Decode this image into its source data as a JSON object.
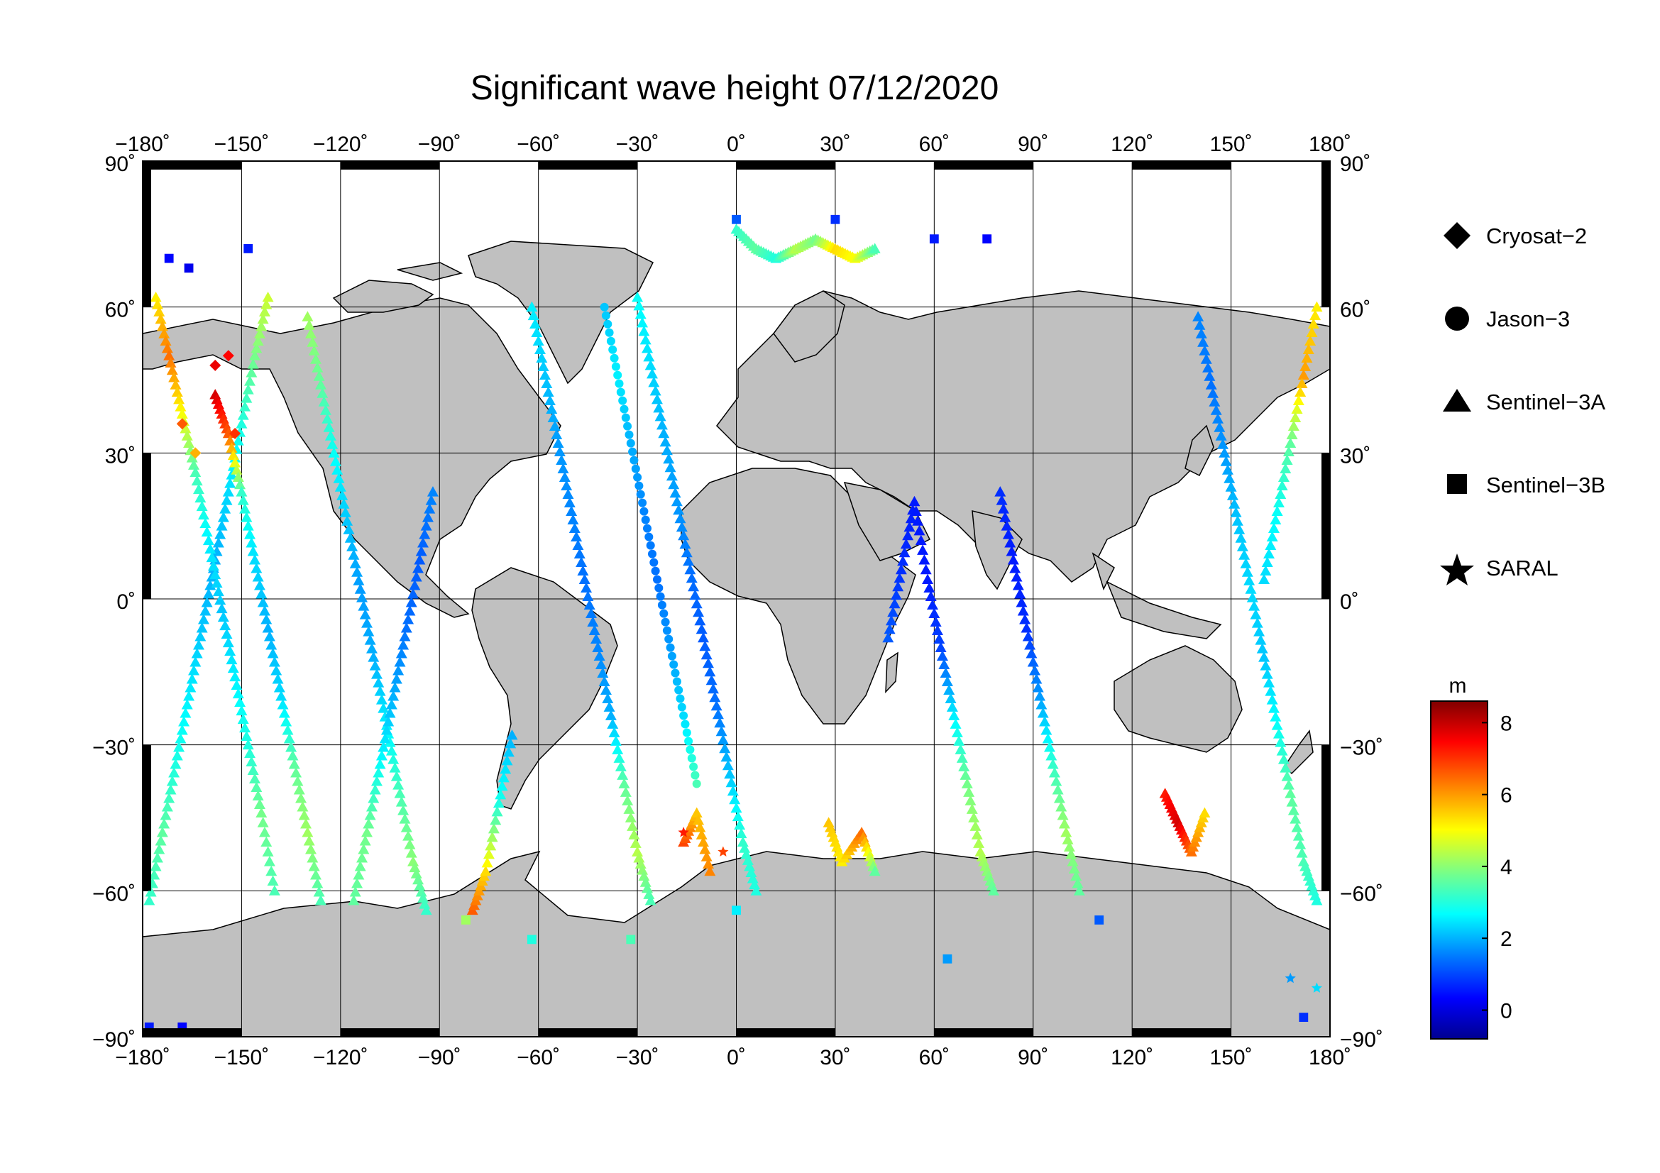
{
  "map": {
    "title": "Significant wave height 07/12/2020",
    "lon_range": [
      -180,
      180
    ],
    "lat_range": [
      -90,
      90
    ],
    "lon_ticks": [
      "−180˚",
      "−150˚",
      "−120˚",
      "−90˚",
      "−60˚",
      "−30˚",
      "0˚",
      "30˚",
      "60˚",
      "90˚",
      "120˚",
      "150˚",
      "180˚"
    ],
    "lat_ticks": [
      "90˚",
      "60˚",
      "30˚",
      "0˚",
      "−30˚",
      "−60˚",
      "−90˚"
    ],
    "grid": true,
    "land_color": "#c0c0c0",
    "ocean_color": "#ffffff"
  },
  "legend": {
    "placement": "right",
    "items": [
      {
        "label": "Cryosat−2",
        "marker": "diamond"
      },
      {
        "label": "Jason−3",
        "marker": "circle"
      },
      {
        "label": "Sentinel−3A",
        "marker": "triangle"
      },
      {
        "label": "Sentinel−3B",
        "marker": "square"
      },
      {
        "label": "SARAL",
        "marker": "star"
      }
    ]
  },
  "colorbar": {
    "unit": "m",
    "range": [
      -0.8,
      8.6
    ],
    "ticks": [
      {
        "value": 8,
        "label": "8"
      },
      {
        "value": 6,
        "label": "6"
      },
      {
        "value": 4,
        "label": "4"
      },
      {
        "value": 2,
        "label": "2"
      },
      {
        "value": 0,
        "label": "0"
      }
    ],
    "colormap": [
      "#00008f",
      "#0000ff",
      "#0080ff",
      "#00ffff",
      "#80ff80",
      "#ffff00",
      "#ff8000",
      "#ff0000",
      "#800000"
    ]
  },
  "chart_data": {
    "type": "scatter",
    "title": "Significant wave height 07/12/2020",
    "x_unit": "longitude (degrees)",
    "y_unit": "latitude (degrees)",
    "value_unit": "m",
    "tracks": [
      {
        "satellite": "Sentinel-3A",
        "points": [
          [
            -178,
            -62,
            3.2
          ],
          [
            -174,
            -48,
            3.6
          ],
          [
            -170,
            -34,
            3.0
          ],
          [
            -166,
            -20,
            2.6
          ],
          [
            -162,
            -6,
            2.2
          ],
          [
            -158,
            8,
            2.0
          ],
          [
            -154,
            22,
            2.4
          ],
          [
            -150,
            36,
            3.0
          ],
          [
            -146,
            50,
            3.8
          ],
          [
            -142,
            62,
            4.6
          ]
        ]
      },
      {
        "satellite": "Sentinel-3A",
        "points": [
          [
            -176,
            62,
            5.2
          ],
          [
            -172,
            50,
            6.4
          ],
          [
            -168,
            38,
            5.0
          ],
          [
            -164,
            26,
            3.4
          ],
          [
            -160,
            12,
            2.6
          ],
          [
            -156,
            -2,
            2.2
          ],
          [
            -152,
            -16,
            2.6
          ],
          [
            -148,
            -30,
            3.0
          ],
          [
            -144,
            -44,
            3.8
          ],
          [
            -140,
            -60,
            3.4
          ]
        ]
      },
      {
        "satellite": "Sentinel-3A",
        "points": [
          [
            -158,
            42,
            7.8
          ],
          [
            -154,
            34,
            6.6
          ],
          [
            -150,
            22,
            3.2
          ],
          [
            -146,
            8,
            2.4
          ],
          [
            -142,
            -6,
            2.0
          ],
          [
            -138,
            -20,
            2.4
          ],
          [
            -134,
            -34,
            3.6
          ],
          [
            -130,
            -48,
            4.2
          ],
          [
            -126,
            -62,
            3.4
          ]
        ]
      },
      {
        "satellite": "Sentinel-3A",
        "points": [
          [
            -130,
            58,
            4.2
          ],
          [
            -126,
            44,
            3.6
          ],
          [
            -122,
            30,
            2.8
          ],
          [
            -118,
            16,
            2.2
          ],
          [
            -114,
            2,
            1.8
          ],
          [
            -110,
            -12,
            2.0
          ],
          [
            -106,
            -26,
            2.6
          ],
          [
            -102,
            -40,
            3.4
          ],
          [
            -98,
            -54,
            4.0
          ],
          [
            -94,
            -64,
            3.2
          ]
        ]
      },
      {
        "satellite": "Sentinel-3A",
        "points": [
          [
            -116,
            -62,
            3.6
          ],
          [
            -112,
            -48,
            3.8
          ],
          [
            -108,
            -34,
            2.8
          ],
          [
            -104,
            -20,
            2.0
          ],
          [
            -100,
            -6,
            1.4
          ],
          [
            -96,
            8,
            1.2
          ],
          [
            -92,
            22,
            1.6
          ]
        ]
      },
      {
        "satellite": "Sentinel-3A",
        "points": [
          [
            -80,
            -64,
            6.6
          ],
          [
            -76,
            -56,
            5.4
          ],
          [
            -72,
            -42,
            3.0
          ],
          [
            -68,
            -28,
            2.0
          ]
        ]
      },
      {
        "satellite": "Sentinel-3A",
        "points": [
          [
            -62,
            60,
            2.6
          ],
          [
            -58,
            46,
            2.2
          ],
          [
            -54,
            32,
            1.8
          ],
          [
            -50,
            18,
            1.6
          ],
          [
            -46,
            4,
            1.4
          ],
          [
            -42,
            -10,
            1.6
          ],
          [
            -38,
            -24,
            2.0
          ],
          [
            -34,
            -38,
            3.6
          ],
          [
            -30,
            -52,
            4.4
          ],
          [
            -26,
            -62,
            3.4
          ]
        ]
      },
      {
        "satellite": "Sentinel-3A",
        "points": [
          [
            -30,
            62,
            2.8
          ],
          [
            -26,
            48,
            2.4
          ],
          [
            -22,
            34,
            2.0
          ],
          [
            -18,
            20,
            1.8
          ],
          [
            -14,
            6,
            1.4
          ],
          [
            -10,
            -8,
            1.2
          ],
          [
            -6,
            -22,
            1.4
          ],
          [
            -2,
            -36,
            2.2
          ],
          [
            2,
            -50,
            3.2
          ],
          [
            6,
            -60,
            3.0
          ]
        ]
      },
      {
        "satellite": "Sentinel-3A",
        "points": [
          [
            -16,
            -50,
            6.8
          ],
          [
            -12,
            -44,
            5.6
          ],
          [
            -8,
            -56,
            6.2
          ]
        ]
      },
      {
        "satellite": "Sentinel-3A",
        "points": [
          [
            0,
            76,
            3.2
          ],
          [
            6,
            72,
            3.6
          ],
          [
            12,
            70,
            3.0
          ],
          [
            18,
            72,
            4.4
          ],
          [
            24,
            74,
            3.8
          ],
          [
            30,
            72,
            5.4
          ],
          [
            36,
            70,
            5.0
          ],
          [
            42,
            72,
            3.4
          ]
        ]
      },
      {
        "satellite": "Sentinel-3A",
        "points": [
          [
            28,
            -46,
            5.6
          ],
          [
            32,
            -54,
            5.2
          ],
          [
            38,
            -48,
            6.4
          ],
          [
            42,
            -56,
            3.6
          ]
        ]
      },
      {
        "satellite": "Sentinel-3A",
        "points": [
          [
            46,
            -8,
            1.2
          ],
          [
            50,
            6,
            0.8
          ],
          [
            54,
            20,
            0.6
          ],
          [
            58,
            4,
            0.6
          ],
          [
            62,
            -10,
            1.0
          ],
          [
            66,
            -24,
            2.6
          ],
          [
            70,
            -38,
            3.8
          ],
          [
            74,
            -52,
            4.4
          ],
          [
            78,
            -60,
            3.6
          ]
        ]
      },
      {
        "satellite": "Sentinel-3A",
        "points": [
          [
            80,
            22,
            0.8
          ],
          [
            84,
            8,
            0.6
          ],
          [
            88,
            -6,
            0.8
          ],
          [
            92,
            -20,
            1.8
          ],
          [
            96,
            -34,
            3.2
          ],
          [
            100,
            -48,
            4.2
          ],
          [
            104,
            -60,
            3.6
          ]
        ]
      },
      {
        "satellite": "Sentinel-3A",
        "points": [
          [
            130,
            -40,
            7.2
          ],
          [
            134,
            -46,
            7.8
          ],
          [
            138,
            -52,
            6.4
          ],
          [
            142,
            -44,
            5.4
          ]
        ]
      },
      {
        "satellite": "Sentinel-3A",
        "points": [
          [
            140,
            58,
            1.6
          ],
          [
            144,
            44,
            1.4
          ],
          [
            148,
            30,
            1.8
          ],
          [
            152,
            16,
            2.2
          ],
          [
            156,
            2,
            2.4
          ],
          [
            160,
            -12,
            2.2
          ],
          [
            164,
            -26,
            2.8
          ],
          [
            168,
            -40,
            3.6
          ],
          [
            172,
            -54,
            3.4
          ],
          [
            176,
            -62,
            3.0
          ]
        ]
      },
      {
        "satellite": "Sentinel-3A",
        "points": [
          [
            176,
            60,
            5.2
          ],
          [
            172,
            46,
            6.0
          ],
          [
            168,
            32,
            3.6
          ],
          [
            164,
            18,
            2.8
          ],
          [
            160,
            4,
            2.4
          ]
        ]
      },
      {
        "satellite": "Cryosat-2",
        "points": [
          [
            -158,
            48,
            7.6
          ],
          [
            -154,
            50,
            7.4
          ],
          [
            -152,
            34,
            7.0
          ]
        ]
      },
      {
        "satellite": "Cryosat-2",
        "points": [
          [
            -168,
            36,
            6.6
          ],
          [
            -164,
            30,
            5.8
          ]
        ]
      },
      {
        "satellite": "Sentinel-3B",
        "points": [
          [
            -172,
            70,
            0.4
          ],
          [
            -166,
            68,
            0.2
          ],
          [
            -148,
            72,
            0.6
          ],
          [
            0,
            78,
            1.2
          ],
          [
            30,
            78,
            0.8
          ],
          [
            60,
            74,
            0.6
          ],
          [
            76,
            74,
            0.4
          ]
        ]
      },
      {
        "satellite": "Sentinel-3B",
        "points": [
          [
            -178,
            -88,
            0.6
          ],
          [
            -168,
            -88,
            0.4
          ],
          [
            -82,
            -66,
            4.2
          ],
          [
            -62,
            -70,
            3.0
          ],
          [
            -32,
            -70,
            3.4
          ],
          [
            0,
            -64,
            2.6
          ],
          [
            64,
            -74,
            1.8
          ],
          [
            110,
            -66,
            1.2
          ],
          [
            172,
            -86,
            0.8
          ]
        ]
      },
      {
        "satellite": "SARAL",
        "points": [
          [
            -16,
            -48,
            7.2
          ],
          [
            -4,
            -52,
            6.8
          ],
          [
            168,
            -78,
            1.8
          ],
          [
            176,
            -80,
            2.4
          ]
        ]
      },
      {
        "satellite": "Jason-3",
        "points": [
          [
            -40,
            60,
            2.2
          ],
          [
            -36,
            46,
            2.6
          ],
          [
            -32,
            32,
            2.0
          ],
          [
            -28,
            18,
            1.6
          ],
          [
            -24,
            4,
            1.4
          ],
          [
            -20,
            -10,
            1.8
          ],
          [
            -16,
            -24,
            2.4
          ],
          [
            -12,
            -38,
            3.4
          ]
        ]
      }
    ]
  }
}
